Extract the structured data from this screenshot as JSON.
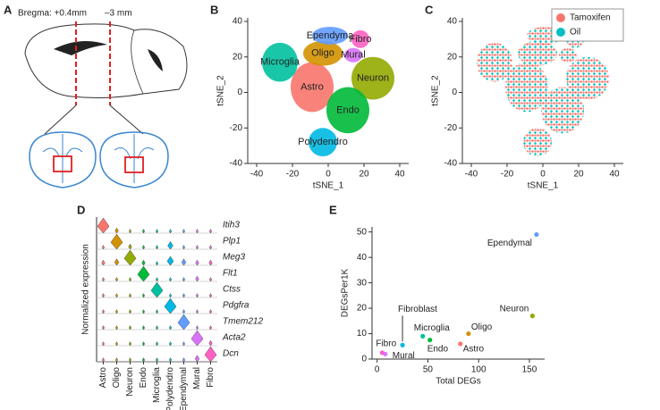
{
  "diagram": {
    "panel": "A",
    "bregma": "Bregma: +0.4mm",
    "posterior": "–3 mm"
  },
  "chart_data": [
    {
      "type": "cluster_map",
      "panel": "B",
      "xlabel": "tSNE_1",
      "ylabel": "tSNE_2",
      "xlim": [
        -45,
        45
      ],
      "xticks": [
        -40,
        -20,
        0,
        20,
        40
      ],
      "ylim": [
        -40,
        42
      ],
      "yticks": [
        -40,
        -20,
        0,
        20,
        40
      ],
      "clusters": [
        {
          "name": "Astro",
          "color": "#f8766d",
          "x": -9,
          "y": 3,
          "rx": 12,
          "ry": 14
        },
        {
          "name": "Oligo",
          "color": "#d39200",
          "x": -3,
          "y": 22,
          "rx": 11,
          "ry": 7
        },
        {
          "name": "Microglia",
          "color": "#00c19f",
          "x": -27,
          "y": 17,
          "rx": 10,
          "ry": 11
        },
        {
          "name": "Ependyma",
          "color": "#619cff",
          "x": 1,
          "y": 32,
          "rx": 10,
          "ry": 5
        },
        {
          "name": "Fibro",
          "color": "#ff61c3",
          "x": 18,
          "y": 30,
          "rx": 5,
          "ry": 5
        },
        {
          "name": "Mural",
          "color": "#db72fb",
          "x": 14,
          "y": 21,
          "rx": 5,
          "ry": 4
        },
        {
          "name": "Neuron",
          "color": "#93aa00",
          "x": 25,
          "y": 8,
          "rx": 12,
          "ry": 12
        },
        {
          "name": "Endo",
          "color": "#00ba38",
          "x": 11,
          "y": -10,
          "rx": 12,
          "ry": 13
        },
        {
          "name": "Polydendro",
          "color": "#00b9e3",
          "x": -3,
          "y": -28,
          "rx": 8,
          "ry": 8
        }
      ]
    },
    {
      "type": "scatter",
      "panel": "C",
      "xlabel": "tSNE_1",
      "ylabel": "tSNE_2",
      "xlim": [
        -45,
        45
      ],
      "xticks": [
        -40,
        -20,
        0,
        20,
        40
      ],
      "ylim": [
        -40,
        42
      ],
      "yticks": [
        -40,
        -20,
        0,
        20,
        40
      ],
      "legend": "top-right",
      "series": [
        {
          "name": "Tamoxifen",
          "color": "#f8766d"
        },
        {
          "name": "Oil",
          "color": "#00bfc4"
        }
      ]
    },
    {
      "type": "violin",
      "panel": "D",
      "ylabel": "Normalized expression",
      "categories": [
        "Astro",
        "Oligo",
        "Neuron",
        "Endo",
        "Microglia",
        "Polydendro",
        "Ependymal",
        "Mural",
        "Fibro"
      ],
      "colors": [
        "#f8766d",
        "#d39200",
        "#93aa00",
        "#00ba38",
        "#00c19f",
        "#00b9e3",
        "#619cff",
        "#db72fb",
        "#ff61c3"
      ],
      "genes": [
        "Itih3",
        "Plp1",
        "Meg3",
        "Flt1",
        "Ctss",
        "Pdgfra",
        "Tmem212",
        "Acta2",
        "Dcn"
      ],
      "values": [
        [
          1,
          0.2,
          0.1,
          0.1,
          0.1,
          0.1,
          0.1,
          0.1,
          0.1
        ],
        [
          0.1,
          1,
          0.2,
          0.1,
          0.1,
          0.4,
          0.1,
          0.1,
          0.1
        ],
        [
          0.2,
          0.3,
          1,
          0.2,
          0.1,
          0.5,
          0.3,
          0.2,
          0.2
        ],
        [
          0.1,
          0.1,
          0.1,
          1,
          0.1,
          0.1,
          0.1,
          0.2,
          0.1
        ],
        [
          0.1,
          0.1,
          0.1,
          0.1,
          1,
          0.1,
          0.1,
          0.1,
          0.1
        ],
        [
          0.1,
          0.1,
          0.1,
          0.1,
          0.1,
          1,
          0.1,
          0.1,
          0.1
        ],
        [
          0.1,
          0.1,
          0.1,
          0.1,
          0.1,
          0.1,
          1,
          0.1,
          0.1
        ],
        [
          0.1,
          0.1,
          0.1,
          0.1,
          0.1,
          0.1,
          0.1,
          1,
          0.2
        ],
        [
          0.1,
          0.1,
          0.1,
          0.1,
          0.1,
          0.1,
          0.1,
          0.3,
          1
        ]
      ]
    },
    {
      "type": "labeled_scatter",
      "panel": "E",
      "xlabel": "Total DEGs",
      "ylabel": "DEGsPer1K",
      "xlim": [
        -5,
        165
      ],
      "xticks": [
        0,
        50,
        100,
        150
      ],
      "ylim": [
        0,
        52
      ],
      "yticks": [
        0,
        10,
        20,
        30,
        40,
        50
      ],
      "labels": [
        "Ependymal",
        "Neuron",
        "Oligo",
        "Astro",
        "Microglia",
        "Endo",
        "Fibroblast",
        "Fibro",
        "Mural"
      ],
      "colors": [
        "#619cff",
        "#93aa00",
        "#d39200",
        "#f8766d",
        "#00c19f",
        "#00ba38",
        "#00b9e3",
        "#ff61c3",
        "#db72fb"
      ],
      "x": [
        157,
        153,
        90,
        82,
        45,
        52,
        25,
        5,
        8
      ],
      "y": [
        49,
        17,
        10,
        6,
        9,
        7.5,
        5.5,
        2.5,
        2
      ]
    }
  ]
}
